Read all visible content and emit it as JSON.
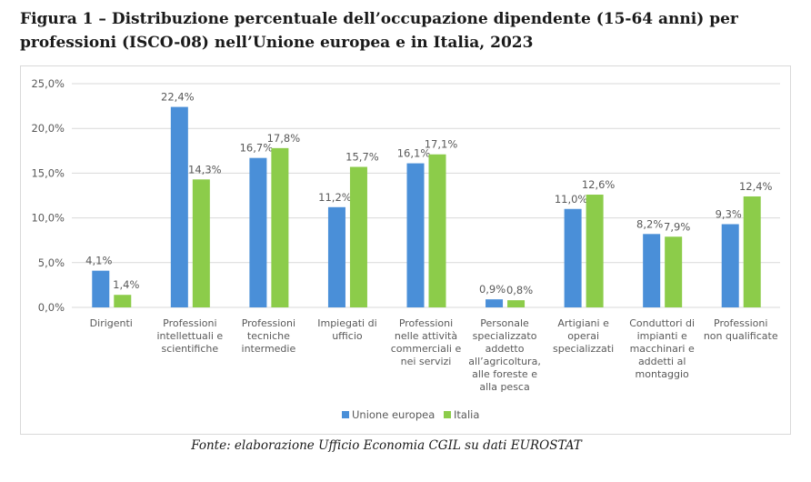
{
  "figure": {
    "title_line1": "Figura 1 – Distribuzione percentuale dell’occupazione dipendente (15-64 anni) per",
    "title_line2": "professioni (ISCO-08) nell’Unione europea e in Italia, 2023",
    "source": "Fonte: elaborazione Ufficio Economia CGIL su dati EUROSTAT"
  },
  "chart_data": {
    "type": "bar",
    "title": "",
    "xlabel": "",
    "ylabel": "",
    "ylim": [
      0,
      25
    ],
    "yticks": [
      "0,0%",
      "5,0%",
      "10,0%",
      "15,0%",
      "20,0%",
      "25,0%"
    ],
    "grid": true,
    "legend_position": "bottom",
    "categories": [
      [
        "Dirigenti"
      ],
      [
        "Professioni",
        "intellettuali e",
        "scientifiche"
      ],
      [
        "Professioni",
        "tecniche",
        "intermedie"
      ],
      [
        "Impiegati di",
        "ufficio"
      ],
      [
        "Professioni",
        "nelle attività",
        "commerciali e",
        "nei servizi"
      ],
      [
        "Personale",
        "specializzato",
        "addetto",
        "all’agricoltura,",
        "alle foreste e",
        "alla pesca"
      ],
      [
        "Artigiani e",
        "operai",
        "specializzati"
      ],
      [
        "Conduttori di",
        "impianti e",
        "macchinari e",
        "addetti al",
        "montaggio"
      ],
      [
        "Professioni",
        "non qualificate"
      ]
    ],
    "series": [
      {
        "name": "Unione europea",
        "color": "#4a8fd8",
        "values": [
          4.1,
          22.4,
          16.7,
          11.2,
          16.1,
          0.9,
          11.0,
          8.2,
          9.3
        ],
        "labels": [
          "4,1%",
          "22,4%",
          "16,7%",
          "11,2%",
          "16,1%",
          "0,9%",
          "11,0%",
          "8,2%",
          "9,3%"
        ]
      },
      {
        "name": "Italia",
        "color": "#8ccc4a",
        "values": [
          1.4,
          14.3,
          17.8,
          15.7,
          17.1,
          0.8,
          12.6,
          7.9,
          12.4
        ],
        "labels": [
          "1,4%",
          "14,3%",
          "17,8%",
          "15,7%",
          "17,1%",
          "0,8%",
          "12,6%",
          "7,9%",
          "12,4%"
        ]
      }
    ]
  }
}
